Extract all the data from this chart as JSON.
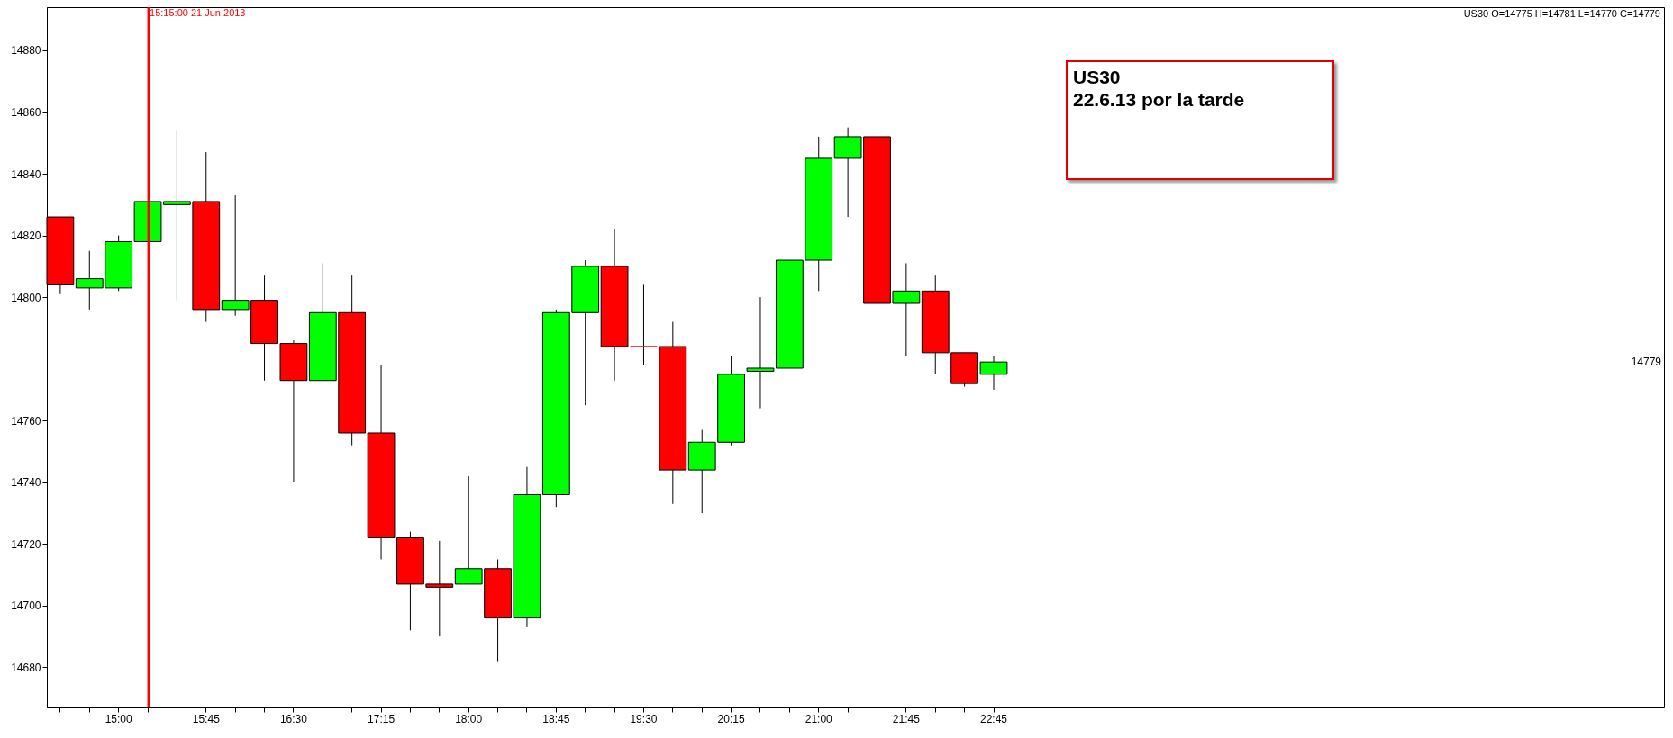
{
  "chart_data": {
    "type": "candlestick",
    "title": "US30",
    "subtitle": "22.6.13 por la tarde",
    "categories": [
      null,
      null,
      "15:00",
      null,
      null,
      "15:45",
      null,
      null,
      "16:30",
      null,
      null,
      "17:15",
      null,
      null,
      "18:00",
      null,
      null,
      "18:45",
      null,
      null,
      "19:30",
      null,
      null,
      "20:15",
      null,
      null,
      "21:00",
      null,
      null,
      "21:45",
      null,
      null,
      "22:45"
    ],
    "ohlc": [
      [
        14826,
        14826,
        14801,
        14804
      ],
      [
        14803,
        14815,
        14796,
        14806
      ],
      [
        14803,
        14820,
        14802,
        14818
      ],
      [
        14818,
        14831,
        14818,
        14831
      ],
      [
        14830,
        14854,
        14799,
        14831
      ],
      [
        14831,
        14847,
        14792,
        14796
      ],
      [
        14796,
        14833,
        14794,
        14799
      ],
      [
        14799,
        14807,
        14773,
        14785
      ],
      [
        14785,
        14786,
        14740,
        14773
      ],
      [
        14773,
        14811,
        14773,
        14795
      ],
      [
        14795,
        14807,
        14752,
        14756
      ],
      [
        14756,
        14778,
        14715,
        14722
      ],
      [
        14722,
        14724,
        14692,
        14707
      ],
      [
        14707,
        14721,
        14690,
        14706
      ],
      [
        14707,
        14742,
        14707,
        14712
      ],
      [
        14712,
        14715,
        14682,
        14696
      ],
      [
        14696,
        14745,
        14693,
        14736
      ],
      [
        14736,
        14796,
        14732,
        14795
      ],
      [
        14795,
        14812,
        14765,
        14810
      ],
      [
        14810,
        14822,
        14773,
        14784
      ],
      [
        14784,
        14804,
        14778,
        14784
      ],
      [
        14784,
        14792,
        14733,
        14744
      ],
      [
        14744,
        14757,
        14730,
        14753
      ],
      [
        14753,
        14781,
        14752,
        14775
      ],
      [
        14776,
        14800,
        14764,
        14777
      ],
      [
        14777,
        14812,
        14777,
        14812
      ],
      [
        14812,
        14852,
        14802,
        14845
      ],
      [
        14845,
        14855,
        14826,
        14852
      ],
      [
        14852,
        14855,
        14798,
        14798
      ],
      [
        14798,
        14811,
        14781,
        14802
      ],
      [
        14802,
        14807,
        14775,
        14782
      ],
      [
        14782,
        14782,
        14771,
        14772
      ],
      [
        14775,
        14781,
        14770,
        14779
      ]
    ],
    "colors": [
      "#ff0000",
      "#00ff00",
      "#00ff00",
      "#00ff00",
      "#00ff00",
      "#ff0000",
      "#00ff00",
      "#ff0000",
      "#ff0000",
      "#00ff00",
      "#ff0000",
      "#ff0000",
      "#ff0000",
      "#ff0000",
      "#00ff00",
      "#ff0000",
      "#00ff00",
      "#00ff00",
      "#00ff00",
      "#ff0000",
      "#ff0000",
      "#ff0000",
      "#00ff00",
      "#00ff00",
      "#00ff00",
      "#00ff00",
      "#00ff00",
      "#00ff00",
      "#ff0000",
      "#00ff00",
      "#ff0000",
      "#ff0000",
      "#00ff00"
    ],
    "ylim": [
      14667,
      14894
    ],
    "yticks": [
      14680,
      14700,
      14720,
      14740,
      14760,
      14800,
      14820,
      14840,
      14860,
      14880
    ],
    "ref_lines": [
      {
        "axis": "x",
        "value": "15:15:00 21 Jun 2013",
        "color": "#ff0000"
      }
    ],
    "annotations": [
      "US30 O=14775 H=14781 L=14770 C=14779",
      "14779"
    ]
  }
}
